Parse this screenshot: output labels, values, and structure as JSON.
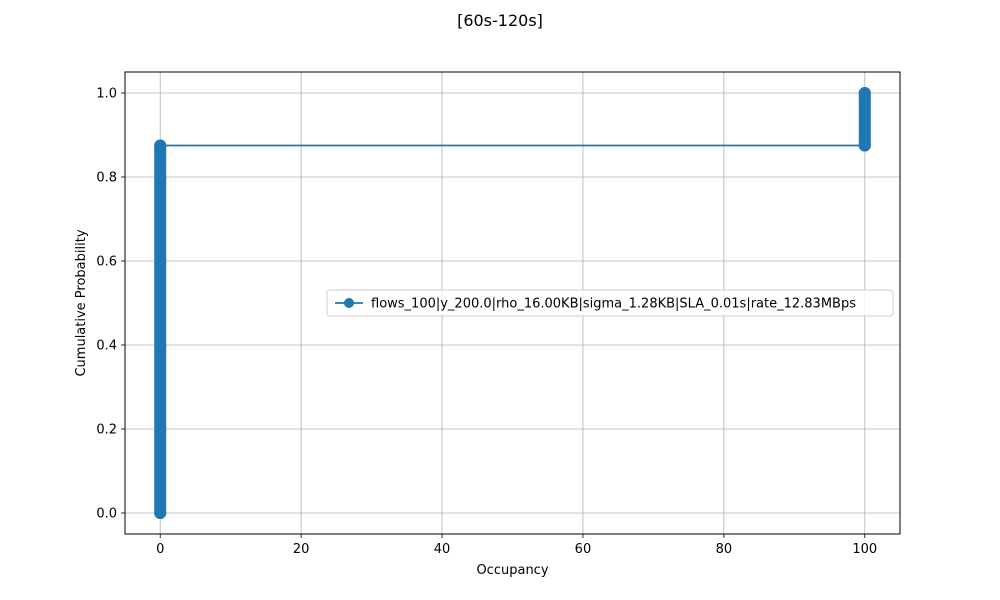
{
  "chart_data": {
    "type": "line",
    "title": "[60s-120s]",
    "xlabel": "Occupancy",
    "ylabel": "Cumulative Probability",
    "xlim": [
      -5,
      105
    ],
    "ylim": [
      -0.05,
      1.05
    ],
    "xticks": [
      0,
      20,
      40,
      60,
      80,
      100
    ],
    "yticks": [
      0.0,
      0.2,
      0.4,
      0.6,
      0.8,
      1.0
    ],
    "xtick_labels": [
      "0",
      "20",
      "40",
      "60",
      "80",
      "100"
    ],
    "ytick_labels": [
      "0.0",
      "0.2",
      "0.4",
      "0.6",
      "0.8",
      "1.0"
    ],
    "grid": true,
    "legend_position": "center-right",
    "series": [
      {
        "name": "flows_100|y_200.0|rho_16.00KB|sigma_1.28KB|SLA_0.01s|rate_12.83MBps",
        "color": "#1f77b4",
        "marker": "circle",
        "segments": [
          {
            "x": 0,
            "y_from": 0.0,
            "y_to": 0.875
          },
          {
            "x": 100,
            "y_from": 0.875,
            "y_to": 1.0
          }
        ],
        "points": [
          {
            "x": 0,
            "y": 0.0
          },
          {
            "x": 0,
            "y": 0.875
          },
          {
            "x": 100,
            "y": 0.875
          },
          {
            "x": 100,
            "y": 1.0
          }
        ]
      }
    ]
  }
}
